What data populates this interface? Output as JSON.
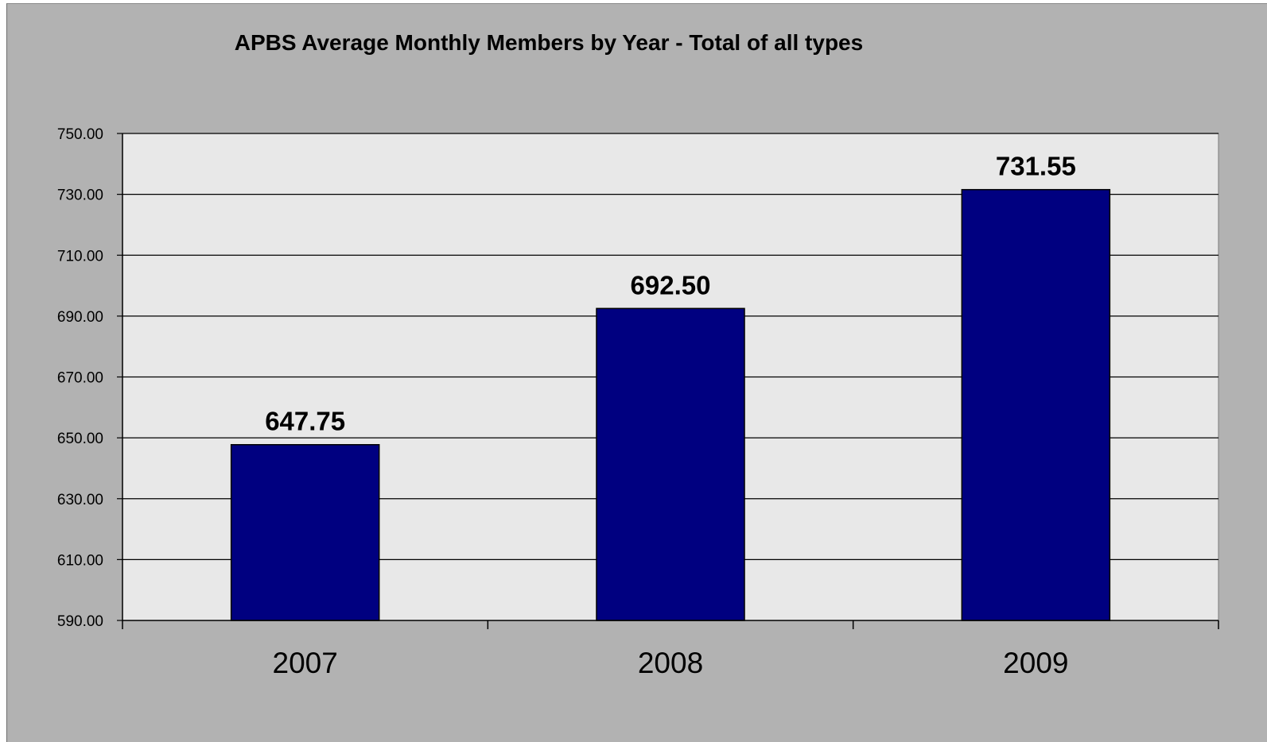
{
  "chart_data": {
    "type": "bar",
    "title": "APBS Average Monthly Members by Year - Total of all types",
    "xlabel": "",
    "ylabel": "",
    "categories": [
      "2007",
      "2008",
      "2009"
    ],
    "values": [
      647.75,
      692.5,
      731.55
    ],
    "data_labels": [
      "647.75",
      "692.50",
      "731.55"
    ],
    "ylim": [
      590,
      750
    ],
    "yticks": [
      "590.00",
      "610.00",
      "630.00",
      "650.00",
      "670.00",
      "690.00",
      "710.00",
      "730.00",
      "750.00"
    ],
    "ytick_values": [
      590,
      610,
      630,
      650,
      670,
      690,
      710,
      730,
      750
    ],
    "grid": true,
    "legend": "none",
    "colors": {
      "bar": "#000080",
      "plot_area": "#e8e8e8",
      "chart_background": "#b2b2b2",
      "gridline": "#000000"
    }
  }
}
